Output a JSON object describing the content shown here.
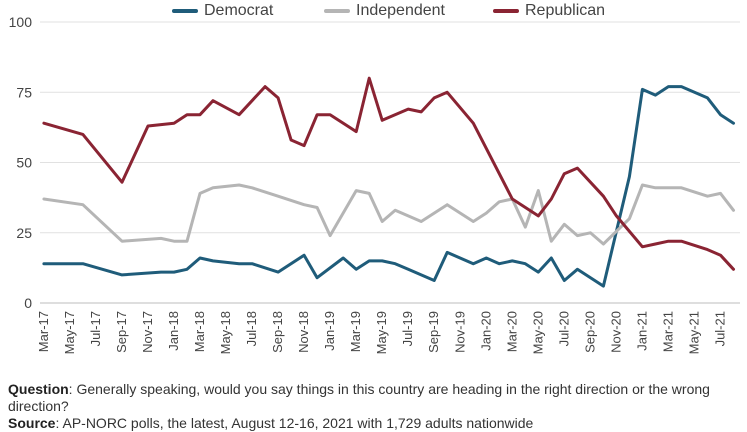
{
  "chart_data": {
    "type": "line",
    "title": "",
    "xlabel": "",
    "ylabel": "",
    "ylim": [
      0,
      100
    ],
    "yticks": [
      0,
      25,
      50,
      75,
      100
    ],
    "grid": true,
    "legend_position": "top",
    "x_tick_labels": [
      "Mar-17",
      "May-17",
      "Jul-17",
      "Sep-17",
      "Nov-17",
      "Jan-18",
      "Mar-18",
      "May-18",
      "Jul-18",
      "Sep-18",
      "Nov-18",
      "Jan-19",
      "Mar-19",
      "May-19",
      "Jul-19",
      "Sep-19",
      "Nov-19",
      "Jan-20",
      "Mar-20",
      "May-20",
      "Jul-20",
      "Sep-20",
      "Nov-20",
      "Jan-21",
      "Mar-21",
      "May-21",
      "Jul-21"
    ],
    "series": [
      {
        "name": "Democrat",
        "color": "#1f5c7a",
        "points": [
          [
            "Mar-17",
            14
          ],
          [
            "Jun-17",
            14
          ],
          [
            "Sep-17",
            10
          ],
          [
            "Dec-17",
            11
          ],
          [
            "Jan-18",
            11
          ],
          [
            "Feb-18",
            12
          ],
          [
            "Mar-18",
            16
          ],
          [
            "Apr-18",
            15
          ],
          [
            "Jun-18",
            14
          ],
          [
            "Jul-18",
            14
          ],
          [
            "Sep-18",
            11
          ],
          [
            "Nov-18",
            17
          ],
          [
            "Dec-18",
            9
          ],
          [
            "Feb-19",
            16
          ],
          [
            "Mar-19",
            12
          ],
          [
            "Apr-19",
            15
          ],
          [
            "May-19",
            15
          ],
          [
            "Jun-19",
            14
          ],
          [
            "Jul-19",
            12
          ],
          [
            "Sep-19",
            8
          ],
          [
            "Oct-19",
            18
          ],
          [
            "Dec-19",
            14
          ],
          [
            "Jan-20",
            16
          ],
          [
            "Feb-20",
            14
          ],
          [
            "Mar-20",
            15
          ],
          [
            "Apr-20",
            14
          ],
          [
            "May-20",
            11
          ],
          [
            "Jun-20",
            16
          ],
          [
            "Jul-20",
            8
          ],
          [
            "Aug-20",
            12
          ],
          [
            "Oct-20",
            6
          ],
          [
            "Dec-20",
            45
          ],
          [
            "Jan-21",
            76
          ],
          [
            "Feb-21",
            74
          ],
          [
            "Mar-21",
            77
          ],
          [
            "Apr-21",
            77
          ],
          [
            "Jun-21",
            73
          ],
          [
            "Jul-21",
            67
          ],
          [
            "Aug-21",
            64
          ]
        ]
      },
      {
        "name": "Independent",
        "color": "#b5b5b5",
        "points": [
          [
            "Mar-17",
            37
          ],
          [
            "Jun-17",
            35
          ],
          [
            "Sep-17",
            22
          ],
          [
            "Dec-17",
            23
          ],
          [
            "Jan-18",
            22
          ],
          [
            "Feb-18",
            22
          ],
          [
            "Mar-18",
            39
          ],
          [
            "Apr-18",
            41
          ],
          [
            "Jun-18",
            42
          ],
          [
            "Jul-18",
            41
          ],
          [
            "Sep-18",
            38
          ],
          [
            "Nov-18",
            35
          ],
          [
            "Dec-18",
            34
          ],
          [
            "Jan-19",
            24
          ],
          [
            "Mar-19",
            40
          ],
          [
            "Apr-19",
            39
          ],
          [
            "May-19",
            29
          ],
          [
            "Jun-19",
            33
          ],
          [
            "Aug-19",
            29
          ],
          [
            "Oct-19",
            35
          ],
          [
            "Dec-19",
            29
          ],
          [
            "Jan-20",
            32
          ],
          [
            "Feb-20",
            36
          ],
          [
            "Mar-20",
            37
          ],
          [
            "Apr-20",
            27
          ],
          [
            "May-20",
            40
          ],
          [
            "Jun-20",
            22
          ],
          [
            "Jul-20",
            28
          ],
          [
            "Aug-20",
            24
          ],
          [
            "Sep-20",
            25
          ],
          [
            "Oct-20",
            21
          ],
          [
            "Dec-20",
            30
          ],
          [
            "Jan-21",
            42
          ],
          [
            "Feb-21",
            41
          ],
          [
            "Apr-21",
            41
          ],
          [
            "Jun-21",
            38
          ],
          [
            "Jul-21",
            39
          ],
          [
            "Aug-21",
            33
          ]
        ]
      },
      {
        "name": "Republican",
        "color": "#8a2433",
        "points": [
          [
            "Mar-17",
            64
          ],
          [
            "Jun-17",
            60
          ],
          [
            "Sep-17",
            43
          ],
          [
            "Nov-17",
            63
          ],
          [
            "Jan-18",
            64
          ],
          [
            "Feb-18",
            67
          ],
          [
            "Mar-18",
            67
          ],
          [
            "Apr-18",
            72
          ],
          [
            "Jun-18",
            67
          ],
          [
            "Aug-18",
            77
          ],
          [
            "Sep-18",
            73
          ],
          [
            "Oct-18",
            58
          ],
          [
            "Nov-18",
            56
          ],
          [
            "Dec-18",
            67
          ],
          [
            "Jan-19",
            67
          ],
          [
            "Mar-19",
            61
          ],
          [
            "Apr-19",
            80
          ],
          [
            "May-19",
            65
          ],
          [
            "Jul-19",
            69
          ],
          [
            "Aug-19",
            68
          ],
          [
            "Sep-19",
            73
          ],
          [
            "Oct-19",
            75
          ],
          [
            "Dec-19",
            64
          ],
          [
            "Jan-20",
            55
          ],
          [
            "Mar-20",
            37
          ],
          [
            "May-20",
            31
          ],
          [
            "Jun-20",
            37
          ],
          [
            "Jul-20",
            46
          ],
          [
            "Aug-20",
            48
          ],
          [
            "Oct-20",
            38
          ],
          [
            "Nov-20",
            31
          ],
          [
            "Jan-21",
            20
          ],
          [
            "Feb-21",
            21
          ],
          [
            "Mar-21",
            22
          ],
          [
            "Apr-21",
            22
          ],
          [
            "Jun-21",
            19
          ],
          [
            "Jul-21",
            17
          ],
          [
            "Aug-21",
            12
          ]
        ]
      }
    ]
  },
  "footnote": {
    "question_label": "Question",
    "question_text": ": Generally speaking, would you say things in this country are heading in the right direction or the wrong direction?",
    "source_label": "Source",
    "source_text": ": AP-NORC polls, the latest, August 12-16, 2021 with 1,729 adults nationwide"
  }
}
